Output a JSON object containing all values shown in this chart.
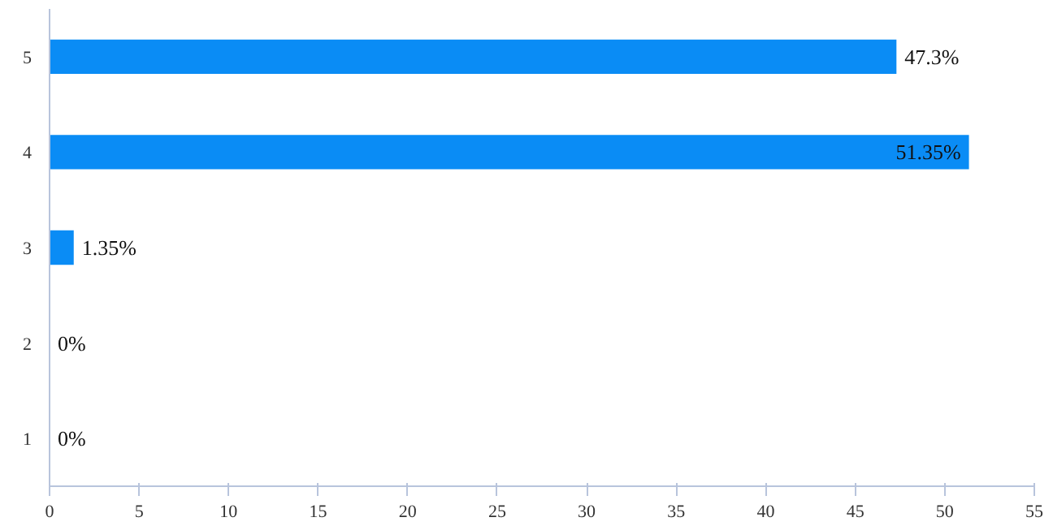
{
  "chart_data": {
    "type": "bar",
    "orientation": "horizontal",
    "categories": [
      "5",
      "4",
      "3",
      "2",
      "1"
    ],
    "values": [
      47.3,
      51.35,
      1.35,
      0,
      0
    ],
    "value_labels": [
      "47.3%",
      "51.35%",
      "1.35%",
      "0%",
      "0%"
    ],
    "color": "#0a8cf5",
    "xlim": [
      0,
      55
    ],
    "xticks": [
      0,
      5,
      10,
      15,
      20,
      25,
      30,
      35,
      40,
      45,
      50,
      55
    ],
    "grid": false
  }
}
